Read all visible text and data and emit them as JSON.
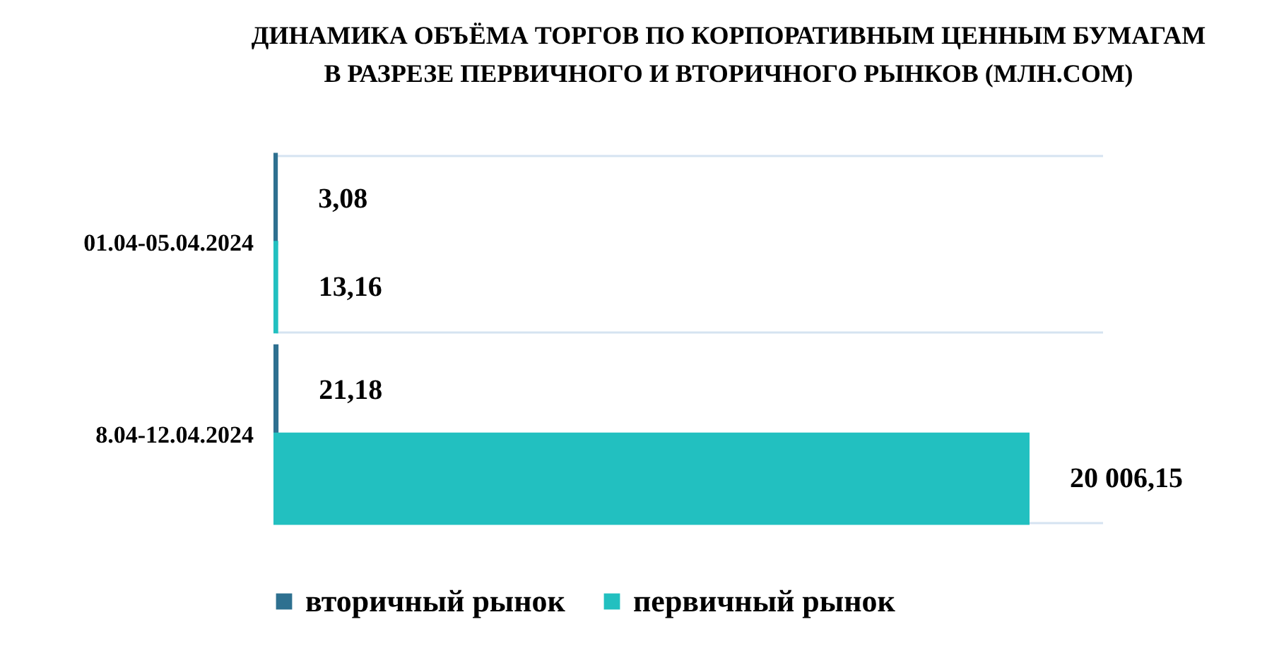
{
  "chart_data": {
    "type": "bar",
    "orientation": "horizontal",
    "title": "ДИНАМИКА ОБЪЁМА ТОРГОВ ПО КОРПОРАТИВНЫМ ЦЕННЫМ БУМАГАМ\nВ РАЗРЕЗЕ ПЕРВИЧНОГО И ВТОРИЧНОГО РЫНКОВ (МЛН.СОМ)",
    "categories": [
      "01.04-05.04.2024",
      "8.04-12.04.2024"
    ],
    "series": [
      {
        "name": "вторичный рынок",
        "color": "#2e7090",
        "values": [
          3.08,
          21.18
        ],
        "value_labels": [
          "3,08",
          "21,18"
        ]
      },
      {
        "name": "первичный рынок",
        "color": "#22c0c0",
        "values": [
          13.16,
          20006.15
        ],
        "value_labels": [
          "13,16",
          "20 006,15"
        ]
      }
    ],
    "grid": "y",
    "legend": "bottom",
    "tick_labels": "y"
  }
}
